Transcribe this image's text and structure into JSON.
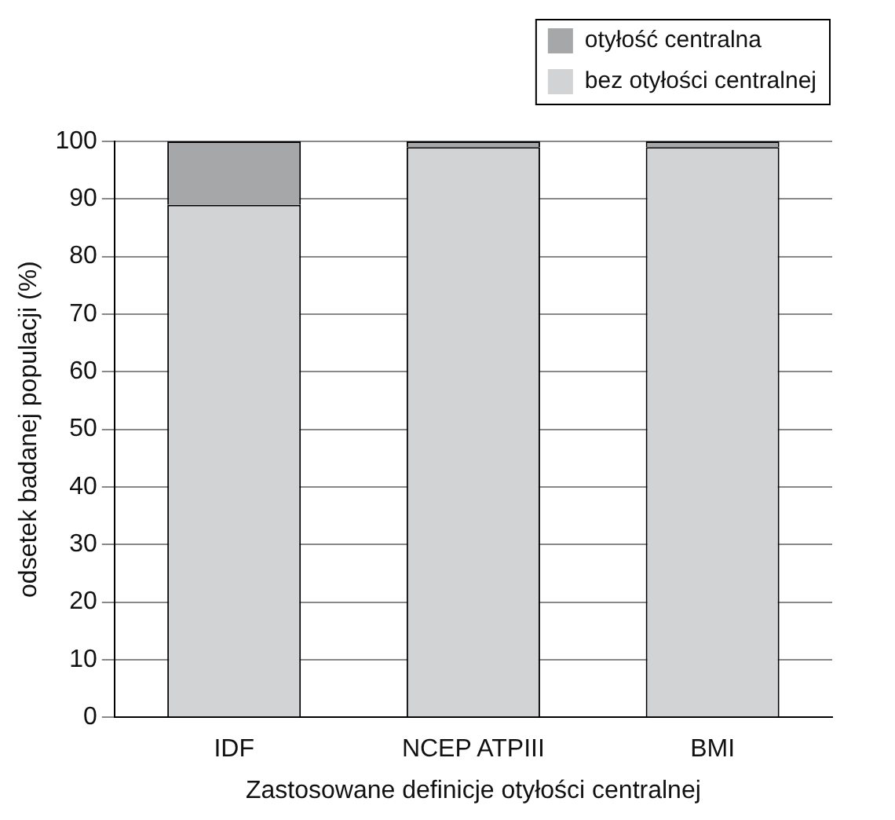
{
  "chart_data": {
    "type": "bar",
    "stacked": true,
    "xlabel": "Zastosowane definicje otyłości centralnej",
    "ylabel": "odsetek badanej populacji (%)",
    "categories": [
      "IDF",
      "NCEP ATPIII",
      "BMI"
    ],
    "series": [
      {
        "name": "bez otyłości centralnej",
        "color": "#d2d3d5",
        "values": [
          89,
          99,
          99
        ]
      },
      {
        "name": "otyłość centralna",
        "color": "#a6a7a9",
        "values": [
          11,
          1,
          1
        ]
      }
    ],
    "ylim": [
      0,
      100
    ],
    "yticks": [
      0,
      10,
      20,
      30,
      40,
      50,
      60,
      70,
      80,
      90,
      100
    ],
    "grid": "y",
    "legend": "top right"
  }
}
